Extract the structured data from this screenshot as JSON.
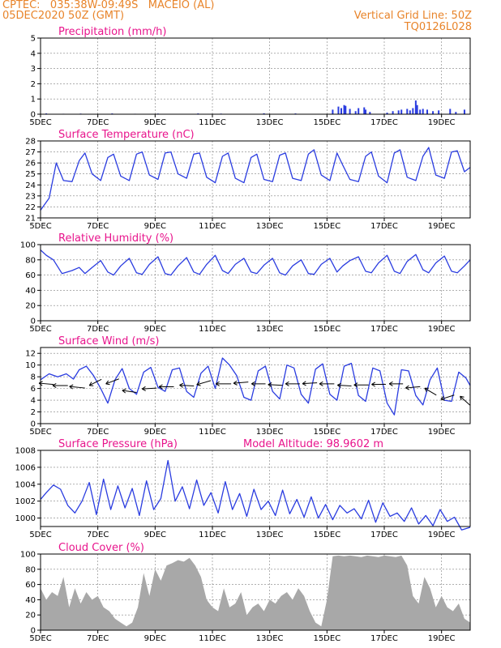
{
  "header": {
    "line1_left": "CPTEC:   035:38W-09:49S   MACEIO (AL)",
    "line2_left": "05DEC2020 50Z (GMT)",
    "line1_right": "Vertical Grid Line: 50Z",
    "line2_right": "TQ0126L028"
  },
  "colors": {
    "header": "#e8842a",
    "title": "#e8148c",
    "line": "#2a3ce0",
    "cloud": "#a8a8a8",
    "axis": "#000000",
    "grid": "#808080"
  },
  "chart_data": [
    {
      "type": "bar",
      "title": "Precipitation (mm/h)",
      "ylim": [
        0,
        5
      ],
      "yticks": [
        0,
        1,
        2,
        3,
        4,
        5
      ],
      "xlim": [
        5,
        20
      ],
      "xticks": [
        5,
        7,
        9,
        11,
        13,
        15,
        17,
        19
      ],
      "xtick_labels": [
        "5DEC",
        "7DEC",
        "9DEC",
        "11DEC",
        "13DEC",
        "15DEC",
        "17DEC",
        "19DEC"
      ],
      "x": [
        5.2,
        5.8,
        6.4,
        7.5,
        8.3,
        9.1,
        10.5,
        11.3,
        12.8,
        13.9,
        15.2,
        15.4,
        15.5,
        15.6,
        15.65,
        15.8,
        16.0,
        16.1,
        16.3,
        16.35,
        16.5,
        17.1,
        17.3,
        17.5,
        17.6,
        17.8,
        17.9,
        18.0,
        18.1,
        18.15,
        18.25,
        18.35,
        18.5,
        18.7,
        18.9,
        19.3,
        19.5,
        19.8
      ],
      "values": [
        0.05,
        0.03,
        0.04,
        0.05,
        0.03,
        0.04,
        0.05,
        0.04,
        0.06,
        0.05,
        0.3,
        0.5,
        0.4,
        0.6,
        0.55,
        0.35,
        0.2,
        0.4,
        0.45,
        0.3,
        0.15,
        0.1,
        0.2,
        0.25,
        0.3,
        0.35,
        0.25,
        0.4,
        0.9,
        0.6,
        0.3,
        0.35,
        0.3,
        0.2,
        0.25,
        0.35,
        0.15,
        0.3
      ]
    },
    {
      "type": "line",
      "title": "Surface Temperature (nC)",
      "ylim": [
        21,
        28
      ],
      "yticks": [
        21,
        22,
        23,
        24,
        25,
        26,
        27,
        28
      ],
      "xlim": [
        5,
        20
      ],
      "xticks": [
        5,
        7,
        9,
        11,
        13,
        15,
        17,
        19
      ],
      "xtick_labels": [
        "5DEC",
        "7DEC",
        "9DEC",
        "11DEC",
        "13DEC",
        "15DEC",
        "17DEC",
        "19DEC"
      ],
      "series": [
        {
          "x": [
            5.0,
            5.3,
            5.55,
            5.8,
            6.1,
            6.35,
            6.55,
            6.8,
            7.1,
            7.35,
            7.55,
            7.8,
            8.1,
            8.35,
            8.55,
            8.8,
            9.1,
            9.35,
            9.55,
            9.8,
            10.1,
            10.35,
            10.55,
            10.8,
            11.1,
            11.35,
            11.55,
            11.8,
            12.1,
            12.35,
            12.55,
            12.8,
            13.1,
            13.35,
            13.55,
            13.8,
            14.1,
            14.35,
            14.55,
            14.8,
            15.1,
            15.35,
            15.55,
            15.8,
            16.1,
            16.35,
            16.55,
            16.8,
            17.1,
            17.35,
            17.55,
            17.8,
            18.1,
            18.35,
            18.55,
            18.8,
            19.1,
            19.35,
            19.55,
            19.8,
            20.0
          ],
          "y": [
            21.7,
            22.8,
            26.0,
            24.4,
            24.3,
            26.2,
            26.9,
            25.0,
            24.4,
            26.5,
            26.8,
            24.8,
            24.4,
            26.8,
            27.0,
            24.9,
            24.5,
            26.9,
            27.0,
            25.0,
            24.6,
            26.8,
            26.9,
            24.7,
            24.2,
            26.6,
            26.9,
            24.6,
            24.2,
            26.5,
            26.8,
            24.5,
            24.3,
            26.7,
            26.9,
            24.6,
            24.4,
            26.8,
            27.2,
            24.9,
            24.4,
            26.9,
            25.8,
            24.5,
            24.3,
            26.6,
            27.0,
            24.8,
            24.2,
            26.9,
            27.2,
            24.7,
            24.4,
            26.6,
            27.4,
            24.9,
            24.6,
            27.0,
            27.1,
            25.2,
            25.6
          ]
        }
      ]
    },
    {
      "type": "line",
      "title": "Relative Humidity (%)",
      "ylim": [
        0,
        100
      ],
      "yticks": [
        0,
        20,
        40,
        60,
        80,
        100
      ],
      "xlim": [
        5,
        20
      ],
      "xticks": [
        5,
        7,
        9,
        11,
        13,
        15,
        17,
        19
      ],
      "xtick_labels": [
        "5DEC",
        "7DEC",
        "9DEC",
        "11DEC",
        "13DEC",
        "15DEC",
        "17DEC",
        "19DEC"
      ],
      "series": [
        {
          "x": [
            5.0,
            5.2,
            5.45,
            5.75,
            6.1,
            6.35,
            6.55,
            6.8,
            7.1,
            7.35,
            7.55,
            7.8,
            8.1,
            8.35,
            8.55,
            8.8,
            9.1,
            9.35,
            9.55,
            9.8,
            10.1,
            10.35,
            10.55,
            10.8,
            11.1,
            11.35,
            11.55,
            11.8,
            12.1,
            12.35,
            12.55,
            12.8,
            13.1,
            13.35,
            13.55,
            13.8,
            14.1,
            14.35,
            14.55,
            14.8,
            15.1,
            15.35,
            15.55,
            15.8,
            16.1,
            16.35,
            16.55,
            16.8,
            17.1,
            17.35,
            17.55,
            17.8,
            18.1,
            18.35,
            18.55,
            18.8,
            19.1,
            19.35,
            19.55,
            19.8,
            20.0
          ],
          "y": [
            93,
            86,
            80,
            62,
            66,
            70,
            62,
            70,
            79,
            64,
            60,
            72,
            82,
            63,
            61,
            74,
            84,
            62,
            60,
            72,
            83,
            64,
            61,
            74,
            86,
            66,
            62,
            74,
            82,
            64,
            62,
            73,
            82,
            63,
            60,
            72,
            80,
            62,
            61,
            74,
            82,
            64,
            72,
            79,
            84,
            65,
            63,
            76,
            86,
            65,
            62,
            78,
            87,
            67,
            63,
            76,
            85,
            65,
            63,
            72,
            80
          ]
        }
      ]
    },
    {
      "type": "line",
      "title": "Surface Wind (m/s)",
      "ylim": [
        0,
        13
      ],
      "yticks": [
        0,
        2,
        4,
        6,
        8,
        10,
        12
      ],
      "xlim": [
        5,
        20
      ],
      "xticks": [
        5,
        7,
        9,
        11,
        13,
        15,
        17,
        19
      ],
      "xtick_labels": [
        "5DEC",
        "7DEC",
        "9DEC",
        "11DEC",
        "13DEC",
        "15DEC",
        "17DEC",
        "19DEC"
      ],
      "series": [
        {
          "x": [
            5.0,
            5.3,
            5.6,
            5.9,
            6.15,
            6.35,
            6.6,
            6.85,
            7.1,
            7.35,
            7.6,
            7.85,
            8.1,
            8.35,
            8.6,
            8.85,
            9.1,
            9.35,
            9.6,
            9.85,
            10.1,
            10.35,
            10.6,
            10.85,
            11.1,
            11.35,
            11.6,
            11.85,
            12.1,
            12.35,
            12.6,
            12.85,
            13.1,
            13.35,
            13.6,
            13.85,
            14.1,
            14.35,
            14.6,
            14.85,
            15.1,
            15.35,
            15.6,
            15.85,
            16.1,
            16.35,
            16.6,
            16.85,
            17.1,
            17.35,
            17.6,
            17.85,
            18.1,
            18.35,
            18.6,
            18.85,
            19.1,
            19.35,
            19.6,
            19.85,
            20.0
          ],
          "y": [
            7.5,
            8.5,
            8.0,
            8.5,
            7.6,
            9.2,
            9.8,
            8.2,
            6.0,
            3.5,
            7.5,
            9.4,
            6.0,
            5.0,
            8.8,
            9.6,
            6.2,
            5.5,
            9.2,
            9.5,
            5.5,
            4.5,
            8.6,
            9.8,
            6.0,
            11.2,
            10.0,
            8.2,
            4.5,
            4.0,
            9.0,
            9.8,
            5.5,
            4.2,
            10.0,
            9.5,
            5.0,
            3.5,
            9.3,
            10.2,
            5.0,
            4.0,
            9.8,
            10.3,
            4.8,
            3.8,
            9.5,
            9.0,
            3.5,
            1.5,
            9.2,
            9.0,
            4.8,
            3.2,
            7.5,
            9.5,
            4.0,
            3.8,
            8.8,
            7.8,
            6.5
          ]
        }
      ],
      "wind_vectors": [
        {
          "x": 5.2,
          "y": 6.8,
          "u": 3.5,
          "v": -0.3
        },
        {
          "x": 5.7,
          "y": 6.5,
          "u": 3.8,
          "v": 0.0
        },
        {
          "x": 6.3,
          "y": 6.2,
          "u": 4.0,
          "v": -0.4
        },
        {
          "x": 6.9,
          "y": 7.0,
          "u": 3.0,
          "v": 1.5
        },
        {
          "x": 7.5,
          "y": 7.2,
          "u": 3.2,
          "v": 1.2
        },
        {
          "x": 8.1,
          "y": 5.5,
          "u": 3.4,
          "v": -0.5
        },
        {
          "x": 8.8,
          "y": 6.0,
          "u": 3.5,
          "v": 0.2
        },
        {
          "x": 9.4,
          "y": 6.3,
          "u": 3.6,
          "v": 0.0
        },
        {
          "x": 10.1,
          "y": 6.5,
          "u": 3.4,
          "v": -0.2
        },
        {
          "x": 10.7,
          "y": 7.0,
          "u": 3.5,
          "v": 1.0
        },
        {
          "x": 11.4,
          "y": 6.8,
          "u": 3.8,
          "v": 0.0
        },
        {
          "x": 12.0,
          "y": 7.0,
          "u": 3.6,
          "v": 0.3
        },
        {
          "x": 12.6,
          "y": 6.8,
          "u": 3.2,
          "v": 0.0
        },
        {
          "x": 13.2,
          "y": 6.6,
          "u": 3.5,
          "v": -0.2
        },
        {
          "x": 13.8,
          "y": 6.8,
          "u": 3.4,
          "v": 0.0
        },
        {
          "x": 14.4,
          "y": 6.9,
          "u": 3.5,
          "v": 0.2
        },
        {
          "x": 15.0,
          "y": 6.8,
          "u": 3.6,
          "v": 0.0
        },
        {
          "x": 15.6,
          "y": 6.5,
          "u": 3.2,
          "v": -0.2
        },
        {
          "x": 16.2,
          "y": 6.6,
          "u": 3.5,
          "v": 0.0
        },
        {
          "x": 16.8,
          "y": 6.7,
          "u": 3.3,
          "v": 0.0
        },
        {
          "x": 17.4,
          "y": 6.8,
          "u": 3.1,
          "v": 0.0
        },
        {
          "x": 18.0,
          "y": 6.2,
          "u": 3.5,
          "v": 0.3
        },
        {
          "x": 18.6,
          "y": 5.5,
          "u": 3.0,
          "v": -1.8
        },
        {
          "x": 19.2,
          "y": 4.5,
          "u": 3.2,
          "v": 1.0
        },
        {
          "x": 19.8,
          "y": 4.0,
          "u": 2.8,
          "v": -2.5
        }
      ]
    },
    {
      "type": "line",
      "title": "Surface Pressure (hPa)",
      "annotation": "Model Altitude: 98.9602 m",
      "ylim": [
        999,
        1008
      ],
      "yticks": [
        1000,
        1002,
        1004,
        1006,
        1008
      ],
      "xlim": [
        5,
        20
      ],
      "xticks": [
        5,
        7,
        9,
        11,
        13,
        15,
        17,
        19
      ],
      "xtick_labels": [
        "5DEC",
        "7DEC",
        "9DEC",
        "11DEC",
        "13DEC",
        "15DEC",
        "17DEC",
        "19DEC"
      ],
      "series": [
        {
          "x": [
            5.0,
            5.2,
            5.45,
            5.7,
            5.95,
            6.2,
            6.45,
            6.7,
            6.95,
            7.2,
            7.45,
            7.7,
            7.95,
            8.2,
            8.45,
            8.7,
            8.95,
            9.2,
            9.45,
            9.7,
            9.95,
            10.2,
            10.45,
            10.7,
            10.95,
            11.2,
            11.45,
            11.7,
            11.95,
            12.2,
            12.45,
            12.7,
            12.95,
            13.2,
            13.45,
            13.7,
            13.95,
            14.2,
            14.45,
            14.7,
            14.95,
            15.2,
            15.45,
            15.7,
            15.95,
            16.2,
            16.45,
            16.7,
            16.95,
            17.2,
            17.45,
            17.7,
            17.95,
            18.2,
            18.45,
            18.7,
            18.95,
            19.2,
            19.45,
            19.7,
            20.0
          ],
          "y": [
            1002.2,
            1003.0,
            1003.9,
            1003.4,
            1001.5,
            1000.6,
            1002.0,
            1004.2,
            1000.4,
            1004.6,
            1001.0,
            1003.8,
            1001.2,
            1003.5,
            1000.3,
            1004.4,
            1001.0,
            1002.3,
            1006.8,
            1002.0,
            1003.7,
            1001.1,
            1004.5,
            1001.5,
            1003.0,
            1000.6,
            1004.3,
            1001.0,
            1002.9,
            1000.2,
            1003.4,
            1001.0,
            1002.0,
            1000.3,
            1003.3,
            1000.5,
            1002.2,
            1000.1,
            1002.5,
            1000.0,
            1001.6,
            999.8,
            1001.5,
            1000.6,
            1001.1,
            999.9,
            1002.1,
            999.5,
            1001.8,
            1000.2,
            1000.6,
            999.6,
            1001.2,
            999.3,
            1000.3,
            999.1,
            1001.0,
            999.6,
            1000.1,
            998.6,
            998.9
          ]
        }
      ]
    },
    {
      "type": "area",
      "title": "Cloud Cover (%)",
      "ylim": [
        0,
        100
      ],
      "yticks": [
        0,
        20,
        40,
        60,
        80,
        100
      ],
      "xlim": [
        5,
        20
      ],
      "xticks": [
        5,
        7,
        9,
        11,
        13,
        15,
        17,
        19
      ],
      "xtick_labels": [
        "5DEC",
        "7DEC",
        "9DEC",
        "11DEC",
        "13DEC",
        "15DEC",
        "17DEC",
        "19DEC"
      ],
      "series": [
        {
          "x": [
            5.0,
            5.2,
            5.4,
            5.6,
            5.8,
            6.0,
            6.2,
            6.4,
            6.6,
            6.8,
            7.0,
            7.2,
            7.4,
            7.6,
            7.8,
            8.0,
            8.2,
            8.4,
            8.6,
            8.8,
            9.0,
            9.2,
            9.4,
            9.6,
            9.8,
            10.0,
            10.2,
            10.4,
            10.6,
            10.8,
            11.0,
            11.2,
            11.4,
            11.6,
            11.8,
            12.0,
            12.2,
            12.4,
            12.6,
            12.8,
            13.0,
            13.2,
            13.4,
            13.6,
            13.8,
            14.0,
            14.2,
            14.4,
            14.6,
            14.8,
            15.0,
            15.2,
            15.4,
            15.6,
            15.8,
            16.0,
            16.2,
            16.4,
            16.6,
            16.8,
            17.0,
            17.2,
            17.4,
            17.6,
            17.8,
            18.0,
            18.2,
            18.4,
            18.6,
            18.8,
            19.0,
            19.2,
            19.4,
            19.6,
            19.8,
            20.0
          ],
          "y": [
            55,
            40,
            50,
            45,
            70,
            30,
            55,
            35,
            50,
            40,
            45,
            30,
            25,
            15,
            10,
            5,
            10,
            30,
            75,
            45,
            80,
            65,
            85,
            88,
            92,
            90,
            95,
            85,
            70,
            40,
            30,
            25,
            55,
            30,
            35,
            50,
            20,
            30,
            35,
            25,
            40,
            35,
            45,
            50,
            40,
            55,
            45,
            25,
            10,
            5,
            40,
            97,
            98,
            97,
            98,
            97,
            96,
            98,
            97,
            96,
            98,
            97,
            96,
            98,
            85,
            45,
            35,
            70,
            55,
            30,
            45,
            30,
            25,
            35,
            15,
            10
          ]
        }
      ]
    }
  ]
}
